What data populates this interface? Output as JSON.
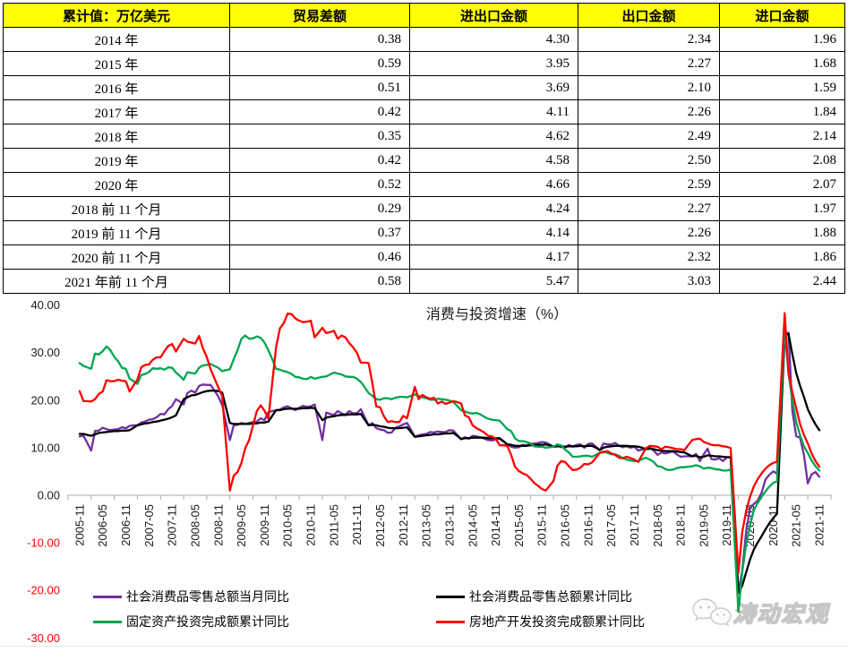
{
  "table": {
    "headers": [
      "累计值：万亿美元",
      "贸易差额",
      "进出口金额",
      "出口金额",
      "进口金额"
    ],
    "header_bg": "#FFFF00",
    "rows": [
      [
        "2014 年",
        "0.38",
        "4.30",
        "2.34",
        "1.96"
      ],
      [
        "2015 年",
        "0.59",
        "3.95",
        "2.27",
        "1.68"
      ],
      [
        "2016 年",
        "0.51",
        "3.69",
        "2.10",
        "1.59"
      ],
      [
        "2017 年",
        "0.42",
        "4.11",
        "2.26",
        "1.84"
      ],
      [
        "2018 年",
        "0.35",
        "4.62",
        "2.49",
        "2.14"
      ],
      [
        "2019 年",
        "0.42",
        "4.58",
        "2.50",
        "2.08"
      ],
      [
        "2020 年",
        "0.52",
        "4.66",
        "2.59",
        "2.07"
      ],
      [
        "2018 前 11 个月",
        "0.29",
        "4.24",
        "2.27",
        "1.97"
      ],
      [
        "2019 前 11 个月",
        "0.37",
        "4.14",
        "2.26",
        "1.88"
      ],
      [
        "2020 前 11 个月",
        "0.46",
        "4.17",
        "2.32",
        "1.86"
      ],
      [
        "2021 年前 11 个月",
        "0.58",
        "5.47",
        "3.03",
        "2.44"
      ]
    ]
  },
  "chart_data": {
    "type": "line",
    "title": "消费与投资增速（%）",
    "x_start": "2005-11",
    "x_end": "2021-11",
    "x_frequency": "monthly",
    "ylim": [
      -30,
      40
    ],
    "y_ticks": [
      40,
      30,
      20,
      10,
      0,
      -10,
      -20,
      -30
    ],
    "negative_tick_color": "#FF0000",
    "grid": false,
    "legend_position": "bottom",
    "x_tick_labels": [
      "2005-11",
      "2006-05",
      "2006-11",
      "2007-05",
      "2007-11",
      "2008-05",
      "2008-11",
      "2009-05",
      "2009-11",
      "2010-05",
      "2010-11",
      "2011-05",
      "2011-11",
      "2012-05",
      "2012-11",
      "2013-05",
      "2013-11",
      "2014-05",
      "2014-11",
      "2015-05",
      "2015-11",
      "2016-05",
      "2016-11",
      "2017-05",
      "2017-11",
      "2018-05",
      "2018-11",
      "2019-05",
      "2019-11",
      "2020-05",
      "2020-11",
      "2021-05",
      "2021-11"
    ],
    "series": [
      {
        "id": "retail-monthly",
        "name": "社会消费品零售总额当月同比",
        "color": "#7030A0",
        "values": [
          12.4,
          12.5,
          11.0,
          9.4,
          13.5,
          13.6,
          14.2,
          13.9,
          13.7,
          13.8,
          13.9,
          14.3,
          14.1,
          14.6,
          14.7,
          14.7,
          15.3,
          15.5,
          15.9,
          16.0,
          16.4,
          17.1,
          17.0,
          18.1,
          18.8,
          20.2,
          19.7,
          19.1,
          21.5,
          22.0,
          21.6,
          23.0,
          23.3,
          23.2,
          23.2,
          22.0,
          20.8,
          19.0,
          15.3,
          11.6,
          14.7,
          14.8,
          15.2,
          15.0,
          15.2,
          15.4,
          15.5,
          16.2,
          15.8,
          17.5,
          17.7,
          17.9,
          18.0,
          18.5,
          18.7,
          18.3,
          17.9,
          18.4,
          18.8,
          18.6,
          18.7,
          19.1,
          15.4,
          11.6,
          17.4,
          17.1,
          16.9,
          17.7,
          17.2,
          17.0,
          17.7,
          17.2,
          17.3,
          18.1,
          16.4,
          14.7,
          15.2,
          14.1,
          13.8,
          13.7,
          13.1,
          13.2,
          14.2,
          14.5,
          14.9,
          15.2,
          13.8,
          12.3,
          12.6,
          12.8,
          12.9,
          13.3,
          13.2,
          13.4,
          13.3,
          13.3,
          13.7,
          13.6,
          12.7,
          11.8,
          12.2,
          11.9,
          12.5,
          12.4,
          12.2,
          11.9,
          11.6,
          11.5,
          11.7,
          11.9,
          11.3,
          10.7,
          10.2,
          10.0,
          10.1,
          10.6,
          10.5,
          10.8,
          10.9,
          11.0,
          11.2,
          11.1,
          10.7,
          10.2,
          10.5,
          10.1,
          10.0,
          10.6,
          10.2,
          10.6,
          10.7,
          10.0,
          10.8,
          10.9,
          10.2,
          9.5,
          10.9,
          10.7,
          10.7,
          11.0,
          10.4,
          10.1,
          10.3,
          10.0,
          10.2,
          9.4,
          9.6,
          9.7,
          10.1,
          9.4,
          8.5,
          9.0,
          8.8,
          9.0,
          9.2,
          8.6,
          8.1,
          8.2,
          8.2,
          8.2,
          8.7,
          7.2,
          8.6,
          9.8,
          7.6,
          7.5,
          7.8,
          7.2,
          8.0,
          8.0,
          -6.3,
          -20.5,
          -15.8,
          -7.5,
          -2.8,
          -1.8,
          -1.1,
          0.5,
          3.3,
          4.3,
          5.0,
          4.6,
          19.2,
          33.8,
          34.2,
          17.7,
          12.4,
          12.1,
          8.5,
          2.5,
          4.4,
          4.9,
          3.9
        ]
      },
      {
        "id": "retail-cumulative",
        "name": "社会消费品零售总额累计同比",
        "color": "#000000",
        "values": [
          12.9,
          12.9,
          12.7,
          12.5,
          12.8,
          13.1,
          13.2,
          13.3,
          13.4,
          13.5,
          13.5,
          13.6,
          13.6,
          13.7,
          14.2,
          14.7,
          14.9,
          15.1,
          15.2,
          15.4,
          15.5,
          15.7,
          15.9,
          16.1,
          16.4,
          16.8,
          18.5,
          20.2,
          20.6,
          21.0,
          21.1,
          21.4,
          21.7,
          21.9,
          22.0,
          22.0,
          21.9,
          21.6,
          18.4,
          15.2,
          15.0,
          15.0,
          15.0,
          15.0,
          15.0,
          15.1,
          15.1,
          15.3,
          15.3,
          15.5,
          16.7,
          17.9,
          17.9,
          18.1,
          18.2,
          18.2,
          18.2,
          18.2,
          18.3,
          18.3,
          18.4,
          18.3,
          17.1,
          15.8,
          16.3,
          16.5,
          16.6,
          16.8,
          16.9,
          16.9,
          17.0,
          17.0,
          17.0,
          17.1,
          15.9,
          14.7,
          14.8,
          14.7,
          14.5,
          14.4,
          14.2,
          14.1,
          14.1,
          14.1,
          14.2,
          14.3,
          13.3,
          12.3,
          12.4,
          12.5,
          12.6,
          12.7,
          12.8,
          12.8,
          12.9,
          13.0,
          13.0,
          13.1,
          12.5,
          11.8,
          12.0,
          12.0,
          12.1,
          12.1,
          12.1,
          12.1,
          12.0,
          12.0,
          12.0,
          12.0,
          11.4,
          10.7,
          10.6,
          10.4,
          10.4,
          10.4,
          10.4,
          10.5,
          10.5,
          10.6,
          10.6,
          10.7,
          10.5,
          10.2,
          10.3,
          10.3,
          10.2,
          10.3,
          10.3,
          10.3,
          10.4,
          10.3,
          10.4,
          10.4,
          10.0,
          9.5,
          10.0,
          10.2,
          10.3,
          10.4,
          10.4,
          10.4,
          10.4,
          10.3,
          10.3,
          10.2,
          10.0,
          9.7,
          9.8,
          9.7,
          9.5,
          9.4,
          9.3,
          9.3,
          9.3,
          9.2,
          9.1,
          9.0,
          8.6,
          8.2,
          8.3,
          8.0,
          8.1,
          8.4,
          8.3,
          8.2,
          8.2,
          8.1,
          8.0,
          8.0,
          -6.3,
          -20.5,
          -19.0,
          -16.2,
          -13.5,
          -11.4,
          -9.9,
          -8.6,
          -7.2,
          -5.9,
          -4.8,
          -3.9,
          15.0,
          33.8,
          33.9,
          29.6,
          25.7,
          23.0,
          20.7,
          18.1,
          16.4,
          14.9,
          13.7
        ]
      },
      {
        "id": "fai-cumulative",
        "name": "固定资产投资完成额累计同比",
        "color": "#00A550",
        "values": [
          27.8,
          27.2,
          26.9,
          26.6,
          29.8,
          29.6,
          30.3,
          31.3,
          30.5,
          29.1,
          28.2,
          26.8,
          26.6,
          24.5,
          24.0,
          23.4,
          25.3,
          25.5,
          25.9,
          26.7,
          26.6,
          26.7,
          26.4,
          26.9,
          26.8,
          25.8,
          25.1,
          24.3,
          25.9,
          25.7,
          25.6,
          26.8,
          27.3,
          27.4,
          27.6,
          27.2,
          26.8,
          26.1,
          26.3,
          26.5,
          28.6,
          30.5,
          32.9,
          33.6,
          32.9,
          33.0,
          33.4,
          33.1,
          32.1,
          30.5,
          28.6,
          26.6,
          26.4,
          26.1,
          25.9,
          25.5,
          24.9,
          24.8,
          24.5,
          24.4,
          24.9,
          24.5,
          24.7,
          24.9,
          25.0,
          25.4,
          25.8,
          25.6,
          25.4,
          25.0,
          24.9,
          24.9,
          24.5,
          23.8,
          22.7,
          21.5,
          20.9,
          20.2,
          20.1,
          20.4,
          20.4,
          20.2,
          20.5,
          20.7,
          20.7,
          20.6,
          20.9,
          21.2,
          20.9,
          20.6,
          20.4,
          20.1,
          20.1,
          20.3,
          20.2,
          20.1,
          19.9,
          19.6,
          18.8,
          17.9,
          17.6,
          17.3,
          17.2,
          17.3,
          17.0,
          16.5,
          16.1,
          15.9,
          15.8,
          15.7,
          14.8,
          13.9,
          13.5,
          12.0,
          11.4,
          11.4,
          11.2,
          10.9,
          10.3,
          10.2,
          10.2,
          10.0,
          10.1,
          10.2,
          10.7,
          10.5,
          9.6,
          9.0,
          8.1,
          8.1,
          8.2,
          8.3,
          8.3,
          8.1,
          8.5,
          8.9,
          9.2,
          8.9,
          8.6,
          8.6,
          8.3,
          7.8,
          7.5,
          7.3,
          7.2,
          7.2,
          7.6,
          7.9,
          7.5,
          7.0,
          6.1,
          6.0,
          5.5,
          5.3,
          5.4,
          5.7,
          5.9,
          5.9,
          6.0,
          6.1,
          6.3,
          6.1,
          5.6,
          5.8,
          5.7,
          5.5,
          5.4,
          5.2,
          5.2,
          5.4,
          -9.6,
          -24.5,
          -16.1,
          -10.3,
          -6.3,
          -3.1,
          -1.6,
          -0.3,
          0.8,
          1.8,
          2.6,
          2.9,
          19.0,
          35.0,
          25.6,
          19.9,
          15.4,
          12.6,
          10.3,
          8.9,
          7.3,
          6.1,
          5.2
        ]
      },
      {
        "id": "realestate-cumulative",
        "name": "房地产开发投资完成额累计同比",
        "color": "#FF0000",
        "values": [
          21.9,
          19.8,
          19.8,
          19.7,
          20.2,
          21.3,
          21.8,
          24.2,
          24.0,
          24.0,
          24.3,
          24.1,
          24.0,
          21.8,
          23.1,
          24.3,
          26.9,
          27.4,
          27.5,
          28.5,
          29.0,
          29.0,
          30.3,
          31.4,
          31.8,
          30.2,
          31.6,
          32.9,
          32.3,
          32.1,
          31.9,
          33.5,
          30.9,
          29.1,
          26.5,
          24.6,
          22.7,
          20.9,
          11.0,
          1.0,
          4.1,
          4.9,
          6.8,
          9.9,
          11.6,
          14.7,
          17.7,
          18.9,
          17.8,
          16.1,
          23.6,
          31.1,
          35.1,
          36.2,
          38.2,
          38.1,
          37.2,
          36.7,
          36.4,
          36.5,
          36.7,
          33.2,
          34.2,
          35.2,
          34.1,
          34.3,
          34.6,
          32.9,
          33.6,
          33.2,
          32.0,
          31.1,
          29.9,
          27.9,
          27.9,
          27.8,
          23.5,
          18.7,
          18.5,
          16.6,
          15.4,
          15.6,
          15.4,
          15.4,
          16.7,
          16.2,
          19.5,
          22.8,
          20.2,
          21.1,
          20.6,
          20.3,
          20.5,
          19.3,
          19.7,
          19.2,
          19.5,
          19.8,
          19.6,
          19.3,
          16.8,
          16.4,
          14.7,
          14.1,
          13.7,
          13.2,
          12.5,
          12.4,
          11.9,
          10.5,
          10.5,
          10.4,
          8.5,
          6.0,
          5.1,
          4.6,
          4.3,
          3.5,
          2.6,
          2.0,
          1.3,
          1.0,
          2.0,
          3.0,
          6.2,
          7.2,
          7.0,
          6.1,
          5.3,
          5.4,
          5.8,
          6.6,
          6.5,
          6.9,
          7.9,
          8.9,
          9.1,
          9.3,
          8.8,
          8.5,
          7.9,
          7.8,
          8.1,
          7.8,
          7.5,
          7.0,
          8.5,
          9.9,
          10.4,
          10.3,
          10.2,
          9.7,
          10.2,
          10.1,
          9.9,
          9.7,
          9.7,
          9.5,
          10.6,
          11.6,
          11.8,
          11.9,
          11.2,
          10.9,
          10.6,
          10.5,
          10.5,
          10.3,
          10.2,
          9.9,
          -3.2,
          -16.3,
          -7.7,
          -3.3,
          -0.3,
          1.9,
          3.4,
          4.6,
          5.6,
          6.3,
          6.8,
          7.0,
          22.7,
          38.3,
          25.6,
          21.6,
          18.3,
          15.0,
          12.7,
          10.9,
          8.8,
          7.2,
          6.0
        ]
      }
    ]
  },
  "watermark": {
    "text": "涛动宏观",
    "icon": "wechat-chat-bubbles"
  }
}
